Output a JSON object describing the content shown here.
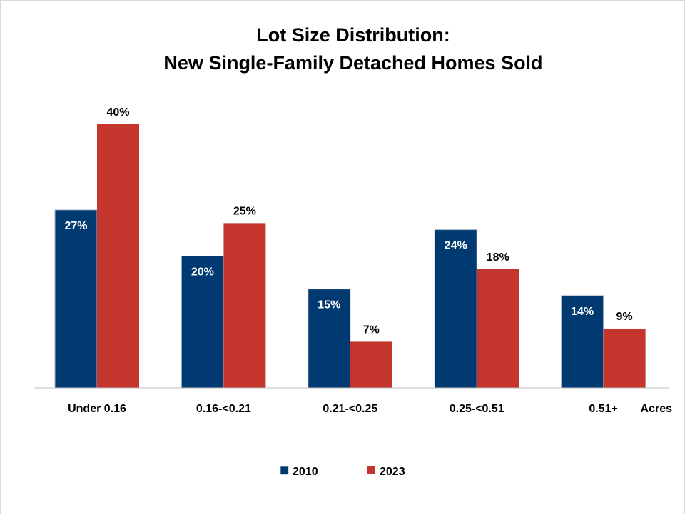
{
  "chart_data": {
    "type": "bar",
    "title": [
      "Lot Size Distribution:",
      "New Single-Family Detached Homes Sold"
    ],
    "xlabel": "Acres",
    "ylabel": "",
    "categories": [
      "Under 0.16",
      "0.16-<0.21",
      "0.21-<0.25",
      "0.25-<0.51",
      "0.51+"
    ],
    "series": [
      {
        "name": "2010",
        "values": [
          27,
          20,
          15,
          24,
          14
        ],
        "labels": [
          "27%",
          "20%",
          "15%",
          "24%",
          "14%"
        ],
        "color": "#003a70",
        "label_position": "inside",
        "label_color": "#ffffff"
      },
      {
        "name": "2023",
        "values": [
          40,
          25,
          7,
          18,
          9
        ],
        "labels": [
          "40%",
          "25%",
          "7%",
          "18%",
          "9%"
        ],
        "color": "#c4352e",
        "label_position": "outside",
        "label_color": "#000000"
      }
    ],
    "ylim": [
      0,
      40
    ],
    "grid": false,
    "legend_position": "bottom-center"
  }
}
